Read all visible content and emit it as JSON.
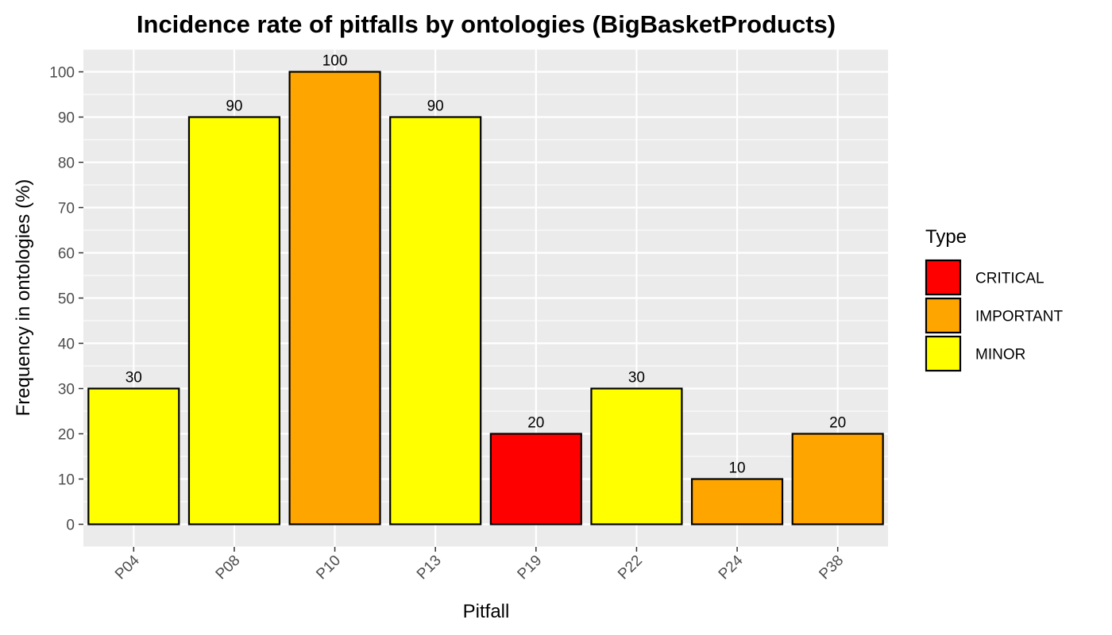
{
  "chart_data": {
    "type": "bar",
    "title": "Incidence rate of pitfalls by ontologies (BigBasketProducts)",
    "xlabel": "Pitfall",
    "ylabel": "Frequency in ontologies (%)",
    "categories": [
      "P04",
      "P08",
      "P10",
      "P13",
      "P19",
      "P22",
      "P24",
      "P38"
    ],
    "values": [
      30,
      90,
      100,
      90,
      20,
      30,
      10,
      20
    ],
    "types": [
      "MINOR",
      "MINOR",
      "IMPORTANT",
      "MINOR",
      "CRITICAL",
      "MINOR",
      "IMPORTANT",
      "IMPORTANT"
    ],
    "ylim": [
      -5,
      105
    ],
    "yticks": [
      0,
      10,
      20,
      30,
      40,
      50,
      60,
      70,
      80,
      90,
      100
    ],
    "ytick_labels": [
      "0",
      "10",
      "20",
      "30",
      "40",
      "50",
      "60",
      "70",
      "80",
      "90",
      "100"
    ],
    "grid": true,
    "legend": {
      "title": "Type",
      "placement": "right",
      "entries": [
        {
          "label": "CRITICAL",
          "color": "#FF0000"
        },
        {
          "label": "IMPORTANT",
          "color": "#FFA500"
        },
        {
          "label": "MINOR",
          "color": "#FFFF00"
        }
      ]
    },
    "colors": {
      "panel_background": "#EBEBEB",
      "grid_line": "#FFFFFF",
      "bar_outline": "#000000"
    }
  }
}
